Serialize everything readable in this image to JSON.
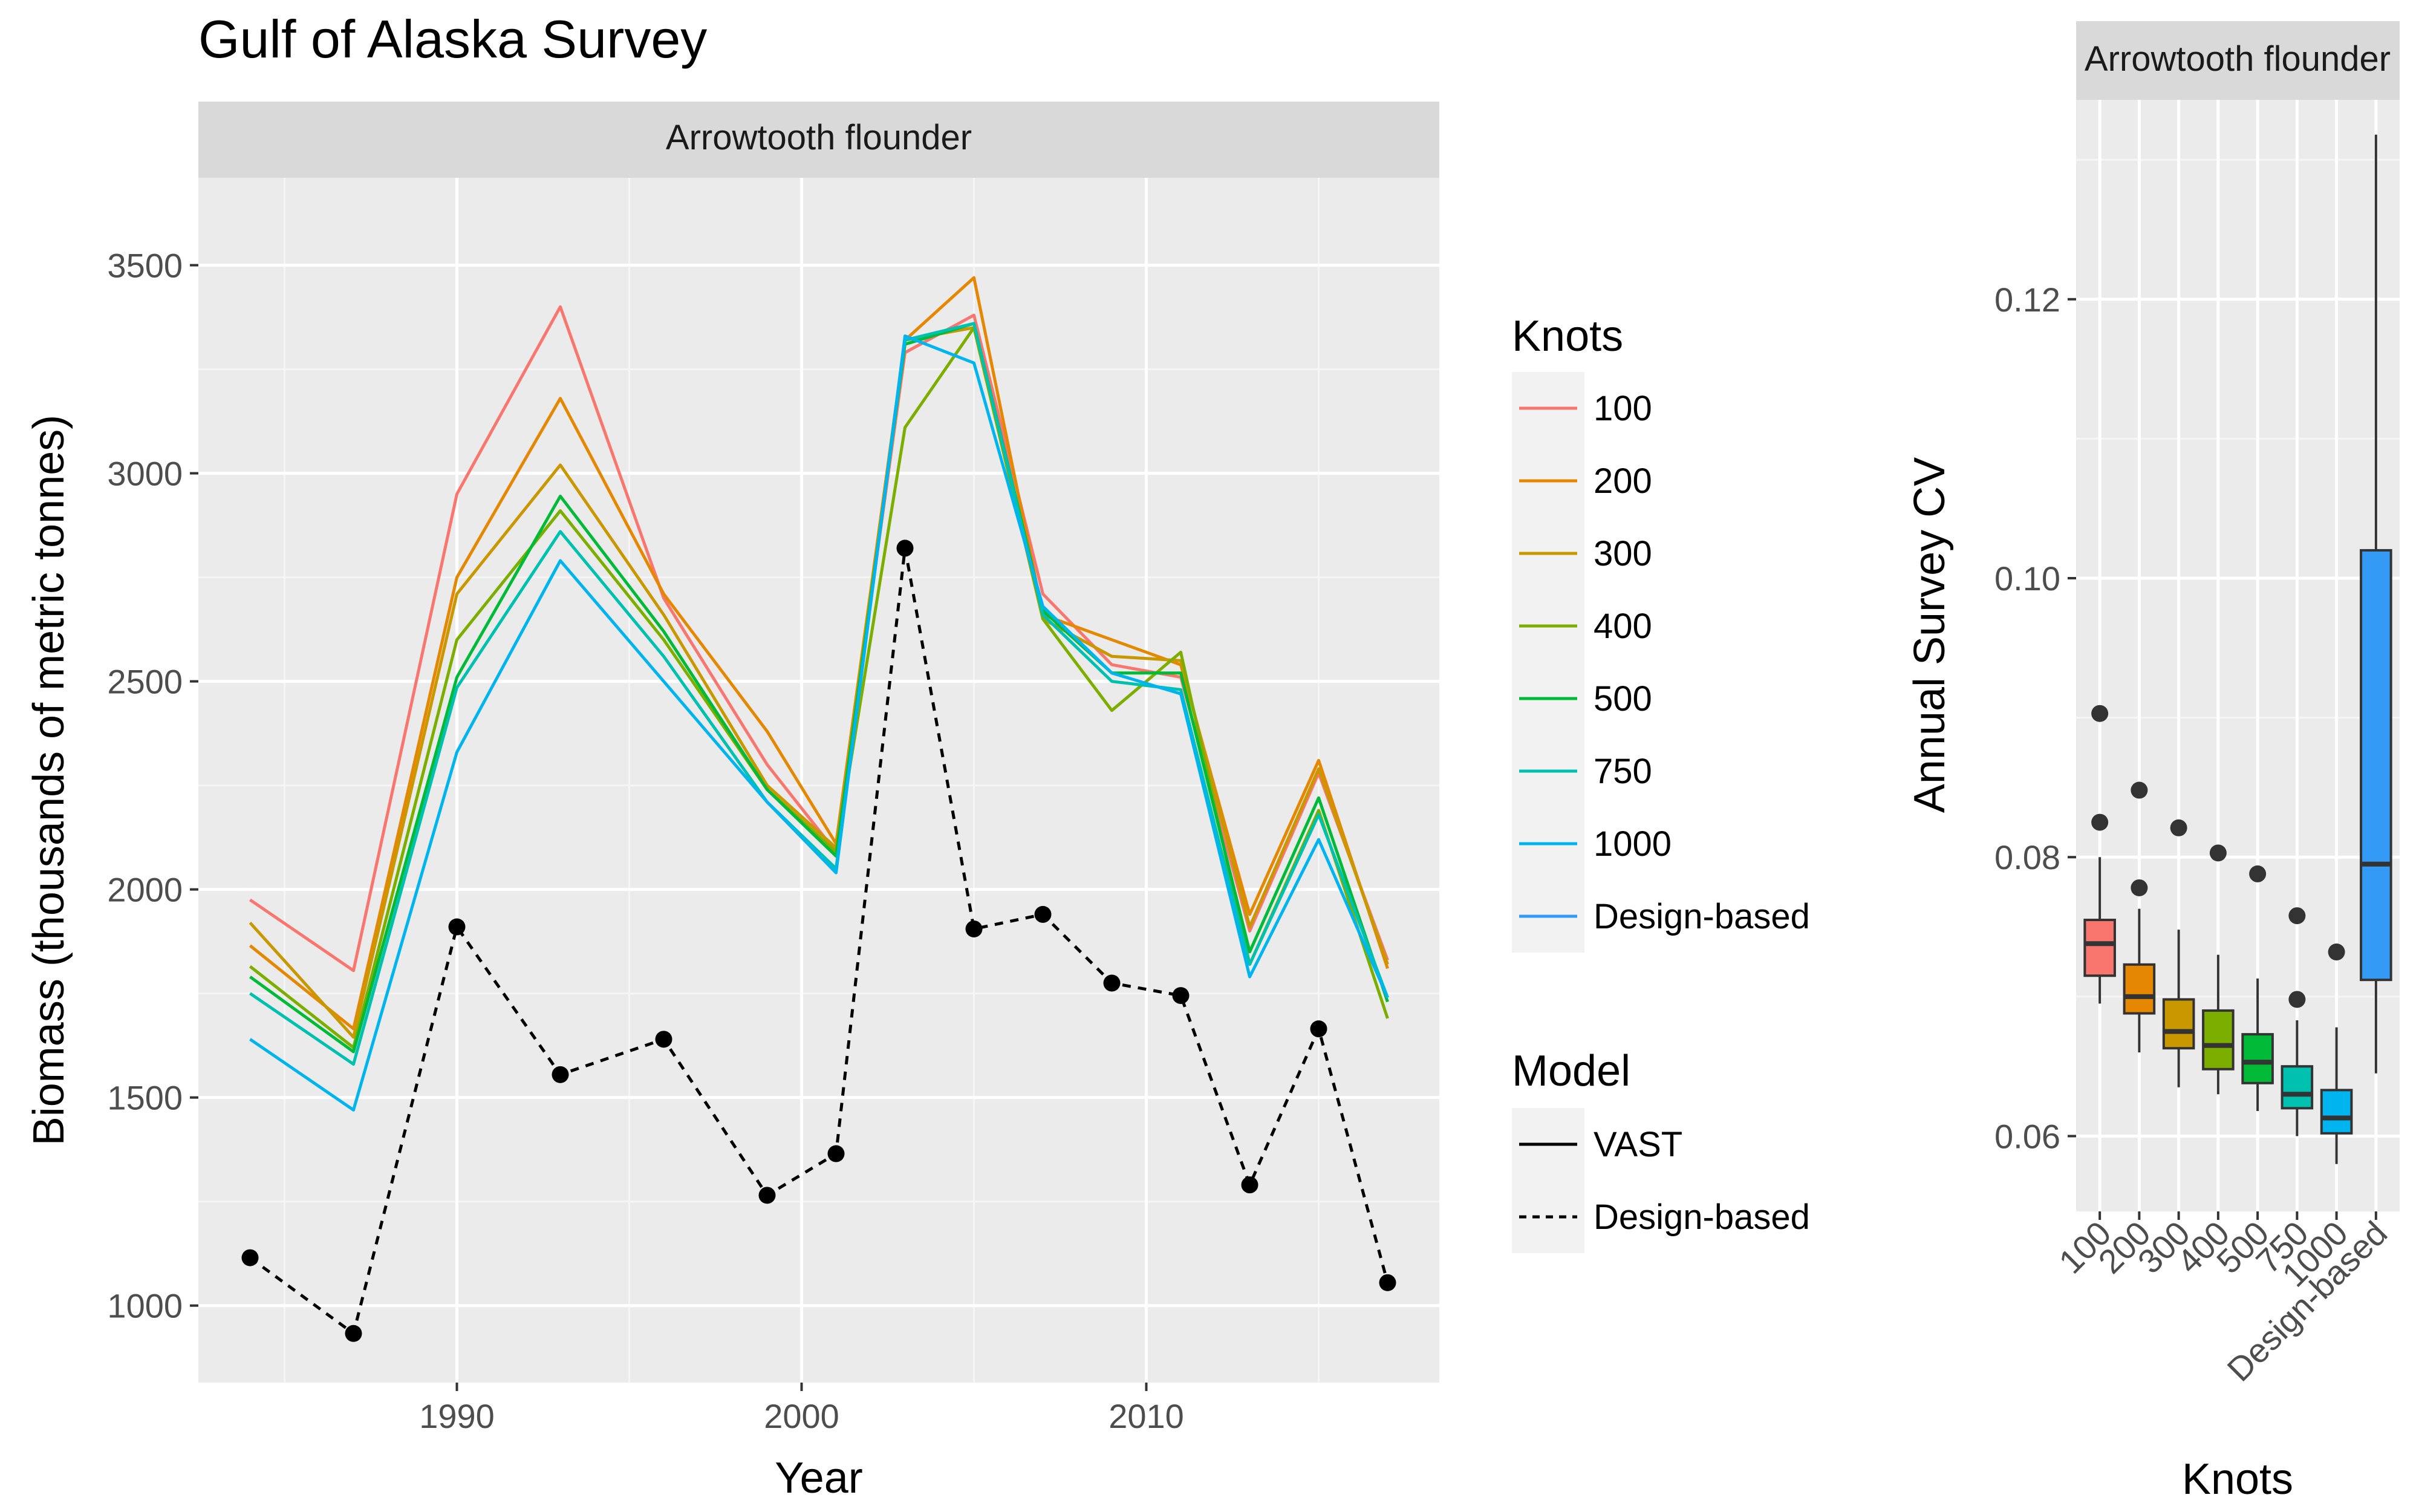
{
  "figure": {
    "title": "Gulf of Alaska Survey"
  },
  "chart_data": [
    {
      "type": "line",
      "title": "Gulf of Alaska Survey",
      "facet_label": "Arrowtooth flounder",
      "xlabel": "Year",
      "ylabel": "Biomass (thousands of metric tonnes)",
      "xlim": [
        1982.5,
        2018.5
      ],
      "ylim": [
        815,
        3710
      ],
      "x_ticks": [
        1990,
        2000,
        2010
      ],
      "y_ticks": [
        1000,
        1500,
        2000,
        2500,
        3000,
        3500
      ],
      "grid": true,
      "x": [
        1984,
        1987,
        1990,
        1993,
        1996,
        1999,
        2001,
        2003,
        2005,
        2007,
        2009,
        2011,
        2013,
        2015,
        2017
      ],
      "series": [
        {
          "name": "100",
          "color": "#F8766D",
          "model": "VAST",
          "values": [
            1975,
            1805,
            2950,
            3400,
            2700,
            2300,
            2090,
            3290,
            3380,
            2710,
            2540,
            2510,
            1900,
            2280,
            1830
          ]
        },
        {
          "name": "200",
          "color": "#E58700",
          "model": "VAST",
          "values": [
            1865,
            1665,
            2750,
            3180,
            2710,
            2380,
            2110,
            3320,
            3470,
            2660,
            2600,
            2540,
            1940,
            2310,
            1810
          ]
        },
        {
          "name": "300",
          "color": "#C99800",
          "model": "VAST",
          "values": [
            1920,
            1645,
            2710,
            3020,
            2660,
            2250,
            2100,
            3320,
            3350,
            2650,
            2560,
            2550,
            1910,
            2290,
            1820
          ]
        },
        {
          "name": "400",
          "color": "#7CAE00",
          "model": "VAST",
          "values": [
            1815,
            1620,
            2600,
            2910,
            2600,
            2240,
            2090,
            3110,
            3350,
            2650,
            2430,
            2570,
            1820,
            2190,
            1690
          ]
        },
        {
          "name": "500",
          "color": "#00BA38",
          "model": "VAST",
          "values": [
            1790,
            1610,
            2510,
            2945,
            2620,
            2240,
            2080,
            3310,
            3360,
            2670,
            2520,
            2520,
            1850,
            2220,
            1730
          ]
        },
        {
          "name": "750",
          "color": "#00C0AF",
          "model": "VAST",
          "values": [
            1750,
            1580,
            2485,
            2860,
            2560,
            2210,
            2050,
            3320,
            3360,
            2660,
            2500,
            2480,
            1820,
            2180,
            1740
          ]
        },
        {
          "name": "1000",
          "color": "#00B4F0",
          "model": "VAST",
          "values": [
            1640,
            1470,
            2330,
            2790,
            2500,
            2210,
            2040,
            3330,
            3265,
            2680,
            2520,
            2470,
            1790,
            2120,
            1740
          ]
        },
        {
          "name": "Design-based",
          "color": "#000000",
          "model": "Design-based",
          "values": [
            1115,
            933,
            1910,
            1555,
            1640,
            1265,
            1365,
            2820,
            1905,
            1940,
            1775,
            1745,
            1290,
            1665,
            1055
          ]
        }
      ]
    },
    {
      "type": "box",
      "facet_label": "Arrowtooth flounder",
      "xlabel": "Knots",
      "ylabel": "Annual Survey CV",
      "ylim": [
        0.0546,
        0.1343
      ],
      "y_ticks": [
        0.06,
        0.08,
        0.1,
        0.12
      ],
      "grid": true,
      "categories": [
        "100",
        "200",
        "300",
        "400",
        "500",
        "750",
        "1000",
        "Design-based"
      ],
      "boxes": [
        {
          "q1": 0.0715,
          "median": 0.0738,
          "q3": 0.0755,
          "low": 0.0695,
          "high": 0.08,
          "outliers": [
            0.0825,
            0.0903
          ],
          "color": "#F8766D"
        },
        {
          "q1": 0.0688,
          "median": 0.07,
          "q3": 0.0723,
          "low": 0.066,
          "high": 0.0763,
          "outliers": [
            0.0778,
            0.0848
          ],
          "color": "#E58700"
        },
        {
          "q1": 0.0663,
          "median": 0.0675,
          "q3": 0.0698,
          "low": 0.0635,
          "high": 0.0748,
          "outliers": [
            0.0821
          ],
          "color": "#C99800"
        },
        {
          "q1": 0.0648,
          "median": 0.0665,
          "q3": 0.069,
          "low": 0.063,
          "high": 0.073,
          "outliers": [
            0.0803
          ],
          "color": "#7CAE00"
        },
        {
          "q1": 0.0638,
          "median": 0.0653,
          "q3": 0.0673,
          "low": 0.0618,
          "high": 0.0713,
          "outliers": [
            0.0788
          ],
          "color": "#00BA38"
        },
        {
          "q1": 0.062,
          "median": 0.063,
          "q3": 0.065,
          "low": 0.06,
          "high": 0.0683,
          "outliers": [
            0.0698,
            0.0758
          ],
          "color": "#00C0AF"
        },
        {
          "q1": 0.0602,
          "median": 0.0613,
          "q3": 0.0633,
          "low": 0.058,
          "high": 0.0678,
          "outliers": [
            0.0732
          ],
          "color": "#00B4F0"
        },
        {
          "q1": 0.0712,
          "median": 0.0795,
          "q3": 0.102,
          "low": 0.0645,
          "high": 0.1318,
          "outliers": [],
          "color": "#339BF5"
        }
      ]
    }
  ],
  "legends": {
    "knots": {
      "title": "Knots",
      "items": [
        {
          "label": "100",
          "color": "#F8766D"
        },
        {
          "label": "200",
          "color": "#E58700"
        },
        {
          "label": "300",
          "color": "#C99800"
        },
        {
          "label": "400",
          "color": "#7CAE00"
        },
        {
          "label": "500",
          "color": "#00BA38"
        },
        {
          "label": "750",
          "color": "#00C0AF"
        },
        {
          "label": "1000",
          "color": "#00B4F0"
        },
        {
          "label": "Design-based",
          "color": "#339BF5"
        }
      ]
    },
    "model": {
      "title": "Model",
      "items": [
        {
          "label": "VAST",
          "dash": "solid"
        },
        {
          "label": "Design-based",
          "dash": "dashed"
        }
      ]
    }
  }
}
